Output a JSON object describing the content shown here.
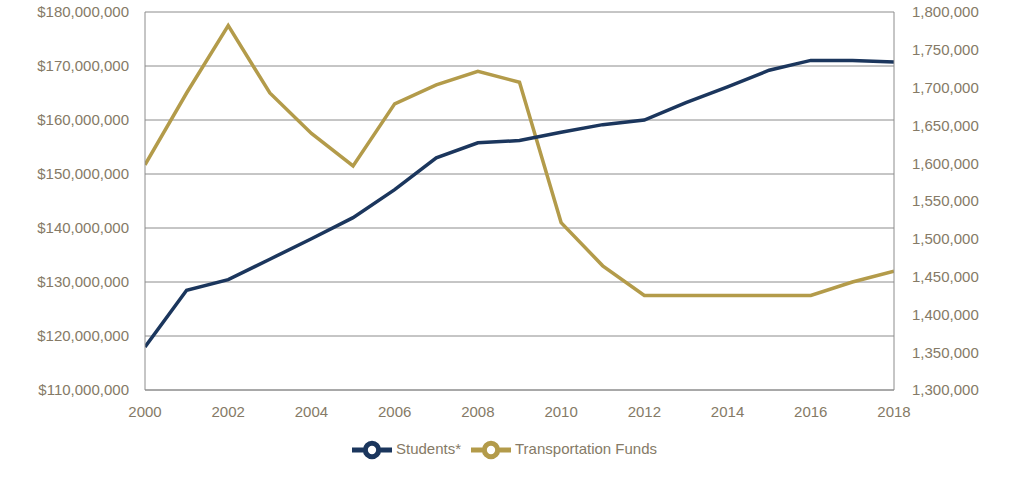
{
  "chart_data": {
    "type": "line",
    "x": [
      2000,
      2001,
      2002,
      2003,
      2004,
      2005,
      2006,
      2007,
      2008,
      2009,
      2010,
      2011,
      2012,
      2013,
      2014,
      2015,
      2016,
      2017,
      2018
    ],
    "series": [
      {
        "name": "Transportation Funds",
        "color": "#b39b4a",
        "values": [
          151700000,
          165000000,
          177500000,
          165000000,
          157500000,
          151500000,
          163000000,
          166500000,
          169000000,
          167000000,
          141000000,
          133000000,
          127500000,
          127500000,
          127500000,
          127500000,
          127500000,
          130000000,
          132000000
        ]
      },
      {
        "name": "Students*",
        "color": "#1b365d",
        "axis": "y2",
        "values": [
          1357000,
          1432000,
          1446000,
          1473000,
          1500000,
          1528000,
          1565000,
          1607000,
          1627000,
          1630000,
          1641000,
          1651000,
          1657000,
          1680000,
          1701000,
          1723000,
          1736000,
          1736000,
          1734000
        ]
      }
    ],
    "xlim": [
      2000,
      2018
    ],
    "xticks": [
      2000,
      2002,
      2004,
      2006,
      2008,
      2010,
      2012,
      2014,
      2016,
      2018
    ],
    "ylim": [
      110000000,
      180000000
    ],
    "yticks": [
      {
        "value": 110000000,
        "label": "$110,000,000"
      },
      {
        "value": 120000000,
        "label": "$120,000,000"
      },
      {
        "value": 130000000,
        "label": "$130,000,000"
      },
      {
        "value": 140000000,
        "label": "$140,000,000"
      },
      {
        "value": 150000000,
        "label": "$150,000,000"
      },
      {
        "value": 160000000,
        "label": "$160,000,000"
      },
      {
        "value": 170000000,
        "label": "$170,000,000"
      },
      {
        "value": 180000000,
        "label": "$180,000,000"
      }
    ],
    "y2lim": [
      1300000,
      1800000
    ],
    "y2ticks": [
      {
        "value": 1300000,
        "label": "1,300,000"
      },
      {
        "value": 1350000,
        "label": "1,350,000"
      },
      {
        "value": 1400000,
        "label": "1,400,000"
      },
      {
        "value": 1450000,
        "label": "1,450,000"
      },
      {
        "value": 1500000,
        "label": "1,500,000"
      },
      {
        "value": 1550000,
        "label": "1,550,000"
      },
      {
        "value": 1600000,
        "label": "1,600,000"
      },
      {
        "value": 1650000,
        "label": "1,650,000"
      },
      {
        "value": 1700000,
        "label": "1,700,000"
      },
      {
        "value": 1750000,
        "label": "1,750,000"
      },
      {
        "value": 1800000,
        "label": "1,800,000"
      }
    ],
    "grid": true,
    "legend": "bottom"
  }
}
